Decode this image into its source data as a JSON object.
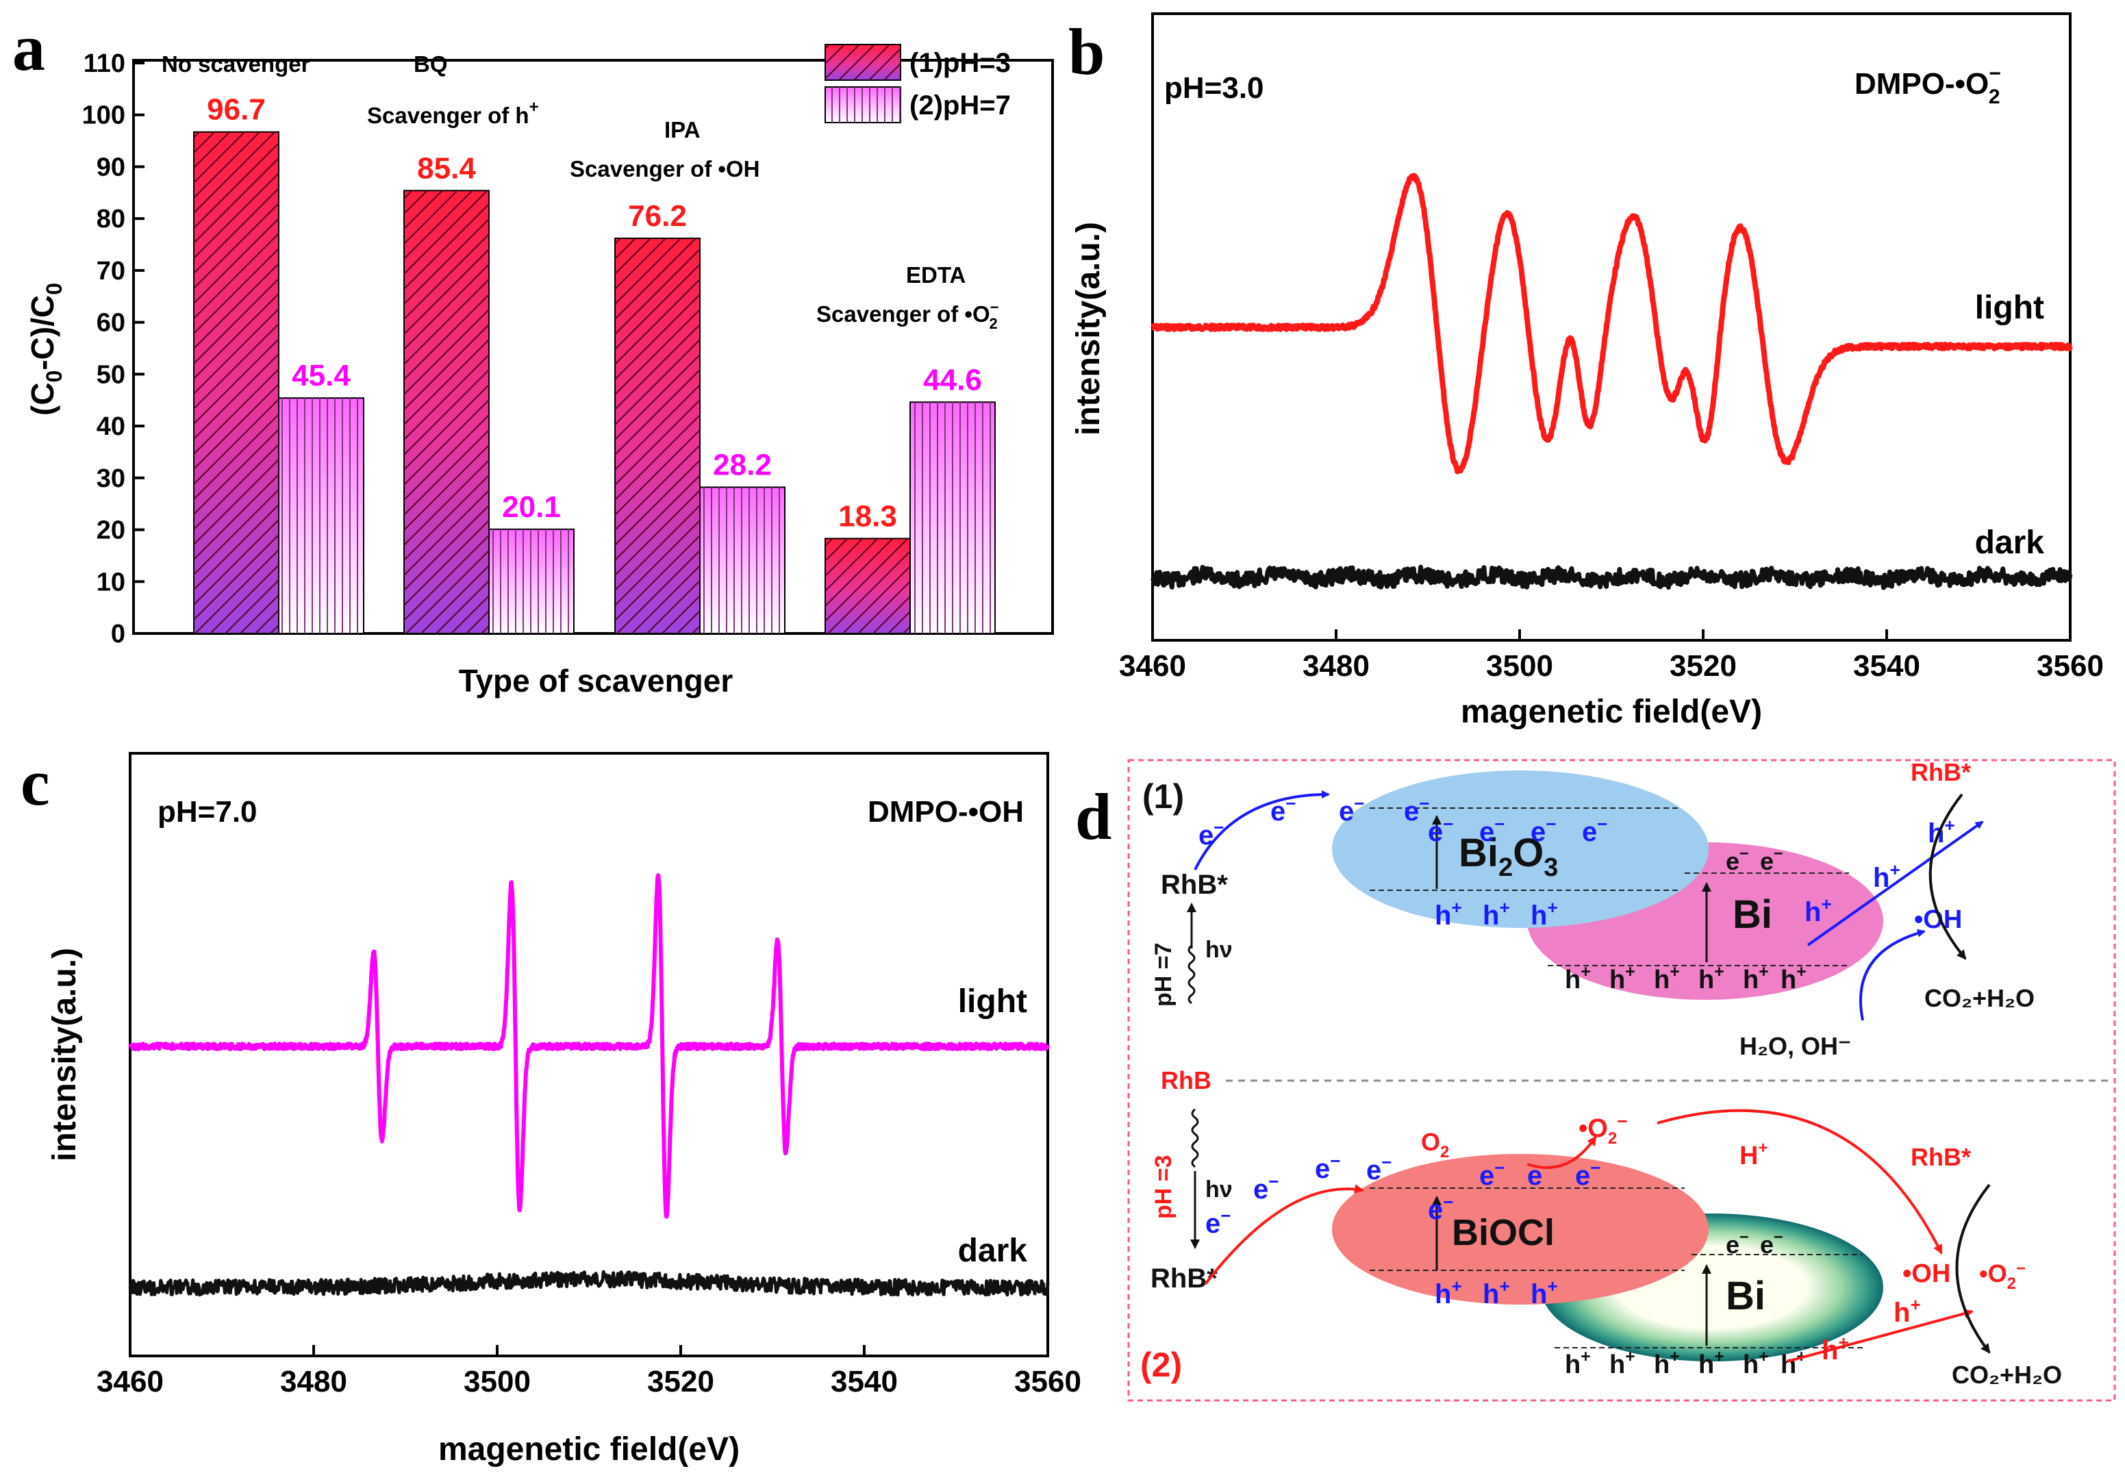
{
  "colors": {
    "ph3": "#ff1a1a",
    "ph7": "#ff00ff",
    "dark": "#111111",
    "electron": "#1a1aff",
    "hole": "#1a1aff",
    "red_text": "#ff1a1a",
    "bi2o3": "#9fcdef",
    "bi_pink": "#ef7fc6",
    "biocl": "#f57f7f",
    "bi_green": "#1e8f86"
  },
  "panel_a": {
    "letter": "a",
    "legend": [
      "(1)pH=3",
      "(2)pH=7"
    ],
    "annotations": {
      "no_scavenger": "No scavenger",
      "bq": "BQ",
      "bq_sub": "Scavenger of h",
      "ipa": "IPA",
      "ipa_sub": "Scavenger of •OH",
      "edta": "EDTA",
      "edta_sub": "Scavenger of •O"
    }
  },
  "panel_b": {
    "letter": "b",
    "ph_label": "pH=3.0",
    "species": "DMPO-•O",
    "light": "light",
    "dark": "dark"
  },
  "panel_c": {
    "letter": "c",
    "ph_label": "pH=7.0",
    "species": "DMPO-•OH",
    "light": "light",
    "dark": "dark"
  },
  "panel_d": {
    "letter": "d",
    "tag1": "(1)",
    "tag2": "(2)",
    "bi2o3": "Bi",
    "bi2o3_sub1": "2",
    "bi2o3_o": "O",
    "bi2o3_sub2": "3",
    "biocl": "BiOCl",
    "bi": "Bi",
    "rhb": "RhB",
    "rhb_star": "RhB*",
    "ph7": "pH =7",
    "ph3": "pH =3",
    "hv": "hν",
    "e": "e",
    "h": "h",
    "minus": "−",
    "plus": "+",
    "oh_radical": "•OH",
    "co2h2o": "CO₂+H₂O",
    "h2o_oh": "H₂O, OH⁻",
    "o2": "O",
    "o2_radical": "•O",
    "h_plus": "H"
  },
  "chart_data": [
    {
      "panel": "a",
      "type": "bar",
      "title": "",
      "xlabel": "Type of scavenger",
      "ylabel": "(C0-C)/C0",
      "ylim": [
        0,
        110
      ],
      "yticks": [
        0,
        10,
        20,
        30,
        40,
        50,
        60,
        70,
        80,
        90,
        100,
        110
      ],
      "categories": [
        "No scavenger",
        "BQ",
        "IPA",
        "EDTA"
      ],
      "series": [
        {
          "name": "(1)pH=3",
          "values": [
            96.7,
            85.4,
            76.2,
            18.3
          ]
        },
        {
          "name": "(2)pH=7",
          "values": [
            45.4,
            20.1,
            28.2,
            44.6
          ]
        }
      ],
      "value_labels": [
        [
          "96.7",
          "85.4",
          "76.2",
          "18.3"
        ],
        [
          "45.4",
          "20.1",
          "28.2",
          "44.6"
        ]
      ],
      "legend": "top-right"
    },
    {
      "panel": "b",
      "type": "line",
      "title": "",
      "xlabel": "magenetic field(eV)",
      "ylabel": "intensity(a.u.)",
      "xlim": [
        3460,
        3560
      ],
      "xticks": [
        3460,
        3480,
        3500,
        3520,
        3540,
        3560
      ],
      "series": [
        {
          "name": "light",
          "baseline_left": 0.82,
          "baseline_right": 0.58,
          "lines": [
            {
              "x": 3491.0,
              "amp": 1.0,
              "w": 2.6
            },
            {
              "x": 3501.0,
              "amp": 0.85,
              "w": 2.6
            },
            {
              "x": 3506.5,
              "amp": 0.55,
              "w": 1.4
            },
            {
              "x": 3515.0,
              "amp": 0.8,
              "w": 2.6
            },
            {
              "x": 3519.3,
              "amp": 0.55,
              "w": 1.4
            },
            {
              "x": 3526.5,
              "amp": 0.78,
              "w": 2.6
            }
          ],
          "x_range": [
            3488,
            3535
          ]
        },
        {
          "name": "dark",
          "baseline": -1.15
        }
      ]
    },
    {
      "panel": "c",
      "type": "line",
      "title": "",
      "xlabel": "magenetic field(eV)",
      "ylabel": "intensity(a.u.)",
      "xlim": [
        3460,
        3560
      ],
      "xticks": [
        3460,
        3480,
        3500,
        3520,
        3540,
        3560
      ],
      "series": [
        {
          "name": "light",
          "baseline": 0.0,
          "lines": [
            {
              "x": 3487.0,
              "amp": 0.55,
              "w": 0.45
            },
            {
              "x": 3502.0,
              "amp": 0.95,
              "w": 0.45
            },
            {
              "x": 3518.0,
              "amp": 1.0,
              "w": 0.45
            },
            {
              "x": 3531.0,
              "amp": 0.62,
              "w": 0.45
            }
          ]
        },
        {
          "name": "dark",
          "baseline": -1.2
        }
      ]
    }
  ]
}
